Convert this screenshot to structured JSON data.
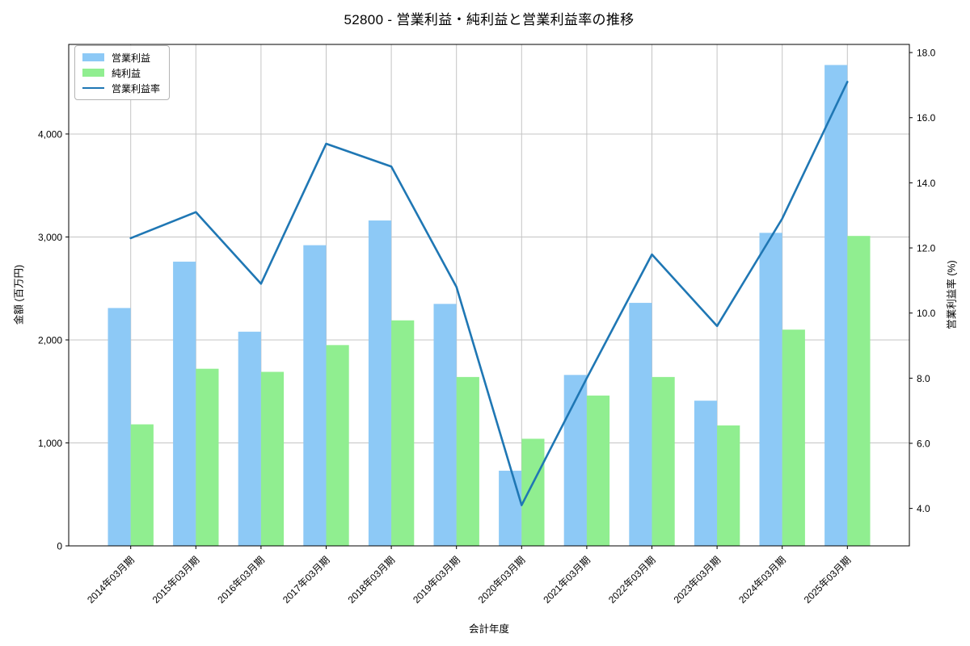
{
  "chart_data": {
    "type": "bar",
    "subtype": "grouped-bars-with-line-overlay",
    "title": "52800 - 営業利益・純利益と営業利益率の推移",
    "xlabel": "会計年度",
    "ylabel_left": "金額 (百万円)",
    "ylabel_right": "営業利益率 (%)",
    "categories": [
      "2014年03月期",
      "2015年03月期",
      "2016年03月期",
      "2017年03月期",
      "2018年03月期",
      "2019年03月期",
      "2020年03月期",
      "2021年03月期",
      "2022年03月期",
      "2023年03月期",
      "2024年03月期",
      "2025年03月期"
    ],
    "series": [
      {
        "name": "営業利益",
        "type": "bar",
        "axis": "left",
        "color": "#8DC9F6",
        "values": [
          2310,
          2760,
          2080,
          2920,
          3160,
          2350,
          730,
          1660,
          2360,
          1410,
          3040,
          4670
        ]
      },
      {
        "name": "純利益",
        "type": "bar",
        "axis": "left",
        "color": "#90EE90",
        "values": [
          1180,
          1720,
          1690,
          1950,
          2190,
          1640,
          1040,
          1460,
          1640,
          1170,
          2100,
          3010
        ]
      },
      {
        "name": "営業利益率",
        "type": "line",
        "axis": "right",
        "color": "#1F77B4",
        "values": [
          12.3,
          13.1,
          10.9,
          15.2,
          14.5,
          10.8,
          4.1,
          8.0,
          11.8,
          9.6,
          12.9,
          17.1
        ]
      }
    ],
    "left_axis": {
      "min": 0,
      "max": 4870,
      "ticks": [
        0,
        1000,
        2000,
        3000,
        4000
      ],
      "tick_format": "thousands"
    },
    "right_axis": {
      "min": 2.85,
      "max": 18.25,
      "ticks": [
        4,
        6,
        8,
        10,
        12,
        14,
        16,
        18
      ],
      "tick_format": "one-decimal"
    },
    "grid": true,
    "grid_color": "#C4C4C4",
    "spine_color": "#000000",
    "legend_position": "upper-left"
  }
}
